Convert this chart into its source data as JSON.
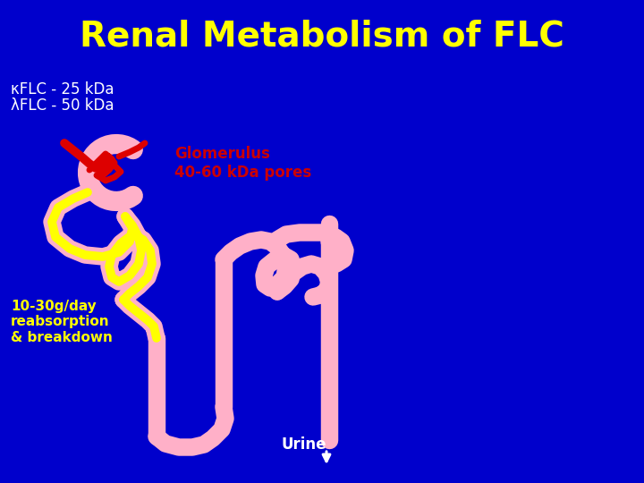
{
  "title": "Renal Metabolism of FLC",
  "title_color": "#FFFF00",
  "title_fontsize": 28,
  "bg_color": "#0000CC",
  "legend_kappa": "κFLC - 25 kDa",
  "legend_lambda": "λFLC - 50 kDa",
  "legend_color": "#FFFFFF",
  "legend_fontsize": 12,
  "glomerulus_label": "Glomerulus\n40-60 kDa pores",
  "glomerulus_color": "#CC0000",
  "glomerulus_fontsize": 12,
  "reabsorption_label": "10-30g/day\nreabsorption\n& breakdown",
  "reabsorption_color": "#FFFF00",
  "reabsorption_fontsize": 11,
  "urine_label": "Urine",
  "urine_color": "#FFFFFF",
  "urine_fontsize": 12,
  "pink": "#FFB0C8",
  "pink_lw": 14,
  "yellow": "#FFFF00",
  "yellow_lw": 7,
  "red": "#DD0000",
  "red_lw": 7
}
